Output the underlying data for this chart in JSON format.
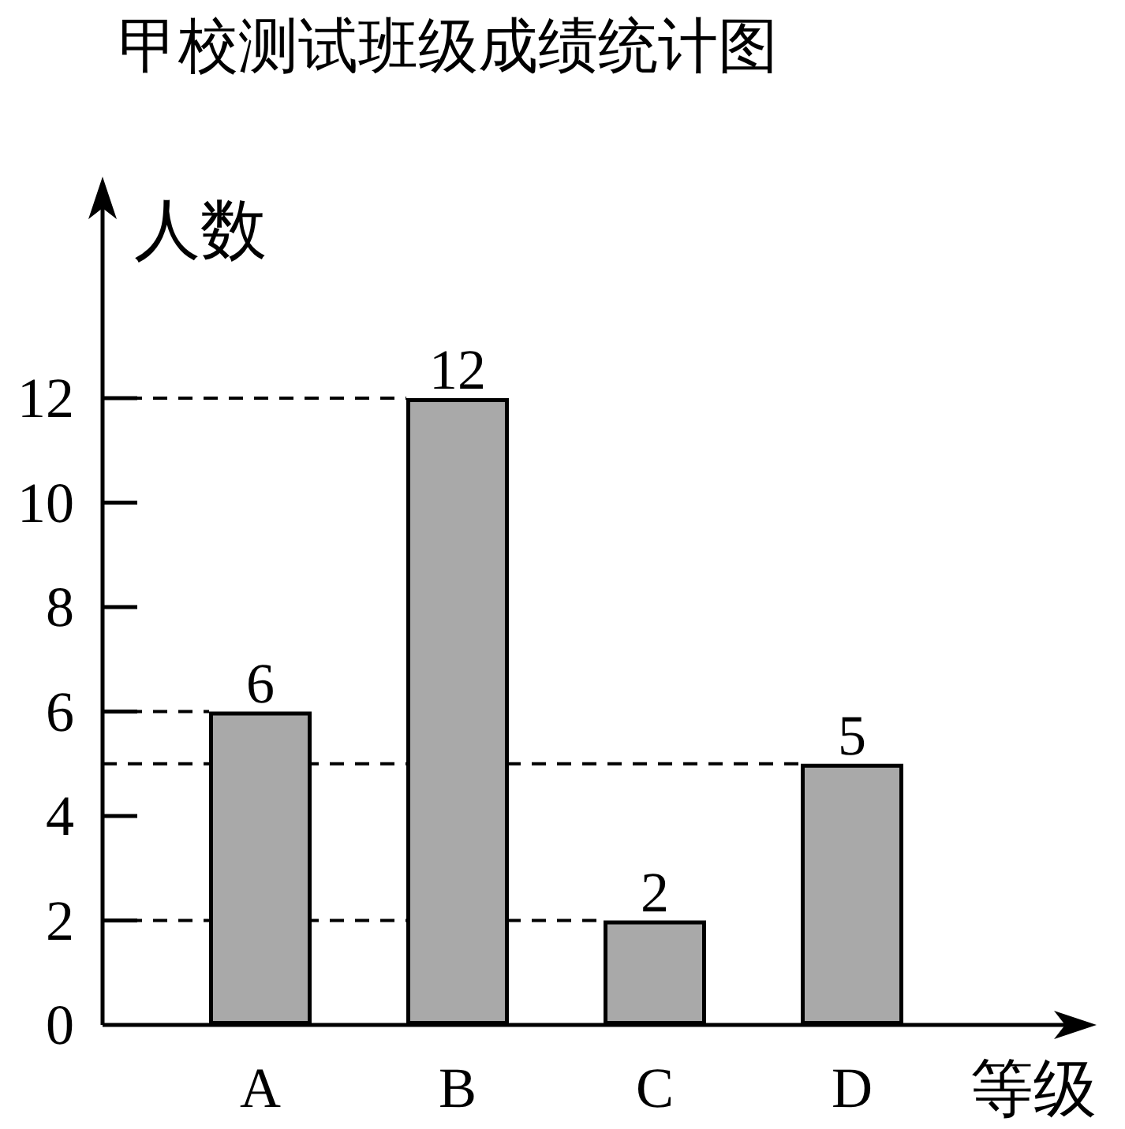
{
  "chart_data": {
    "type": "bar",
    "title": "甲校测试班级成绩统计图",
    "ylabel": "人数",
    "xlabel": "等级",
    "categories": [
      "A",
      "B",
      "C",
      "D"
    ],
    "values": [
      6,
      12,
      2,
      5
    ],
    "color": "#a9a9a9",
    "ylim": [
      0,
      16
    ],
    "yticks": [
      0,
      2,
      4,
      6,
      8,
      10,
      12
    ],
    "data_labels": true,
    "ref_lines": [
      {
        "axis": "y",
        "value": 12,
        "line_style": "dashed"
      },
      {
        "axis": "y",
        "value": 6,
        "line_style": "dashed"
      },
      {
        "axis": "y",
        "value": 5,
        "line_style": "dashed"
      },
      {
        "axis": "y",
        "value": 2,
        "line_style": "dashed"
      }
    ]
  }
}
